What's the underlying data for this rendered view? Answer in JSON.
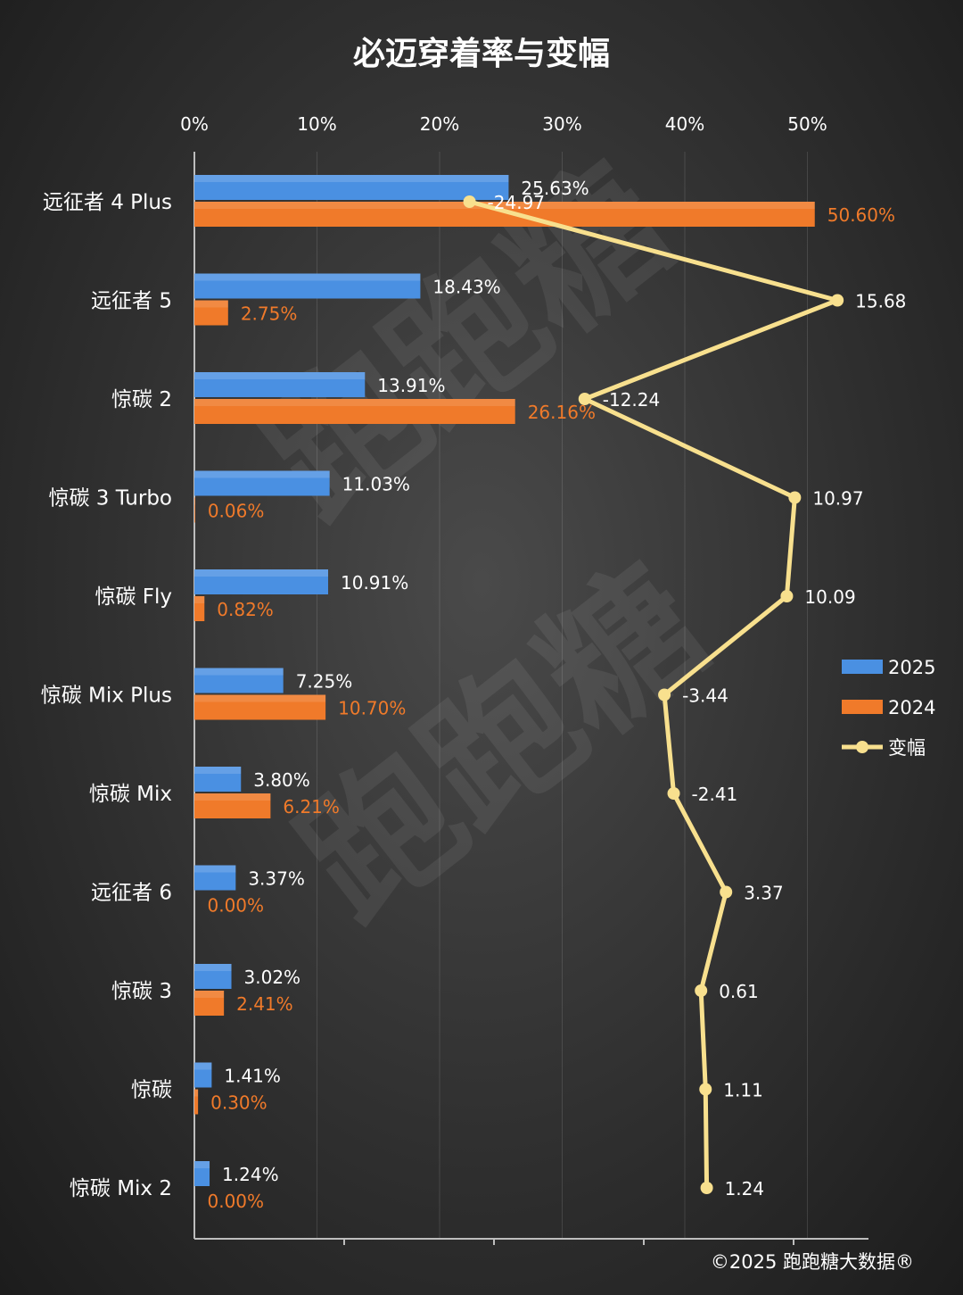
{
  "chart_data": {
    "type": "bar",
    "orientation": "horizontal",
    "title": "必迈穿着率与变幅",
    "categories": [
      "远征者 4 Plus",
      "远征者 5",
      "惊碳 2",
      "惊碳 3 Turbo",
      "惊碳 Fly",
      "惊碳 Mix Plus",
      "惊碳 Mix",
      "远征者 6",
      "惊碳 3",
      "惊碳",
      "惊碳 Mix 2"
    ],
    "x_ticks": [
      "0%",
      "10%",
      "20%",
      "30%",
      "40%",
      "50%"
    ],
    "xlim": [
      0,
      55
    ],
    "series": [
      {
        "name": "2025",
        "color": "#4a90e2",
        "values": [
          25.63,
          18.43,
          13.91,
          11.03,
          10.91,
          7.25,
          3.8,
          3.37,
          3.02,
          1.41,
          1.24
        ],
        "labels": [
          "25.63%",
          "18.43%",
          "13.91%",
          "11.03%",
          "10.91%",
          "7.25%",
          "3.80%",
          "3.37%",
          "3.02%",
          "1.41%",
          "1.24%"
        ]
      },
      {
        "name": "2024",
        "color": "#f07a2a",
        "values": [
          50.6,
          2.75,
          26.16,
          0.06,
          0.82,
          10.7,
          6.21,
          0.0,
          2.41,
          0.3,
          0.0
        ],
        "labels": [
          "50.60%",
          "2.75%",
          "26.16%",
          "0.06%",
          "0.82%",
          "10.70%",
          "6.21%",
          "0.00%",
          "2.41%",
          "0.30%",
          "0.00%"
        ]
      }
    ],
    "line_series": {
      "name": "变幅",
      "color": "#f8e08e",
      "values": [
        -24.97,
        15.68,
        -12.24,
        10.97,
        10.09,
        -3.44,
        -2.41,
        3.37,
        0.61,
        1.11,
        1.24
      ],
      "labels": [
        "-24.97",
        "15.68",
        "-12.24",
        "10.97",
        "10.09",
        "-3.44",
        "-2.41",
        "3.37",
        "0.61",
        "1.11",
        "1.24"
      ]
    },
    "legend": [
      {
        "label": "2025",
        "kind": "bar",
        "color": "#4a90e2"
      },
      {
        "label": "2024",
        "kind": "bar",
        "color": "#f07a2a"
      },
      {
        "label": "变幅",
        "kind": "line",
        "color": "#f8e08e"
      }
    ],
    "legend_position": "right",
    "watermark": "跑跑糖",
    "footer": "©2025 跑跑糖大数据®"
  }
}
